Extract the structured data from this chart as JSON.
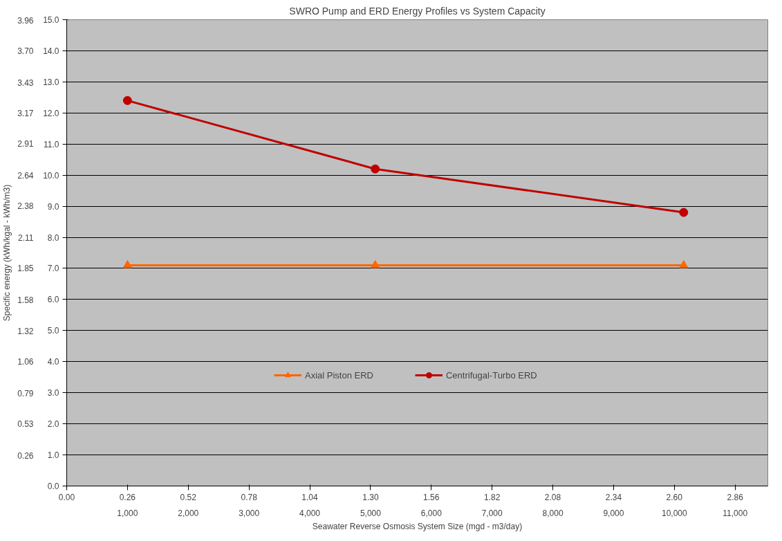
{
  "chart_data": {
    "type": "line",
    "title": "SWRO Pump and ERD Energy Profiles vs System Capacity",
    "xlabel": "Seawater Reverse Osmosis System Size (mgd - m3/day)",
    "y2label": "Specific energy (kWh/kgal - kWh/m3)",
    "x": [
      0.26,
      1.32,
      2.64
    ],
    "series": [
      {
        "name": "Axial Piston ERD",
        "color": "#ff6600",
        "marker": "triangle",
        "values": [
          7.1,
          7.1,
          7.1
        ]
      },
      {
        "name": "Centrifugal-Turbo ERD",
        "color": "#c00000",
        "marker": "circle",
        "values": [
          12.4,
          10.2,
          8.8
        ]
      }
    ],
    "xlim": [
      0,
      3.0
    ],
    "xticks": [
      {
        "value": 0,
        "label": "0.00"
      },
      0.26,
      0.52,
      0.78,
      1.04,
      {
        "value": 1.3,
        "label": "1.30"
      },
      1.56,
      1.82,
      2.08,
      2.34,
      {
        "value": 2.6,
        "label": "2.60"
      },
      2.86
    ],
    "x2lim": [
      0,
      11538
    ],
    "x2ticks": [
      {
        "value": 1000,
        "label": "1,000"
      },
      {
        "value": 2000,
        "label": "2,000"
      },
      {
        "value": 3000,
        "label": "3,000"
      },
      {
        "value": 4000,
        "label": "4,000"
      },
      {
        "value": 5000,
        "label": "5,000"
      },
      {
        "value": 6000,
        "label": "6,000"
      },
      {
        "value": 7000,
        "label": "7,000"
      },
      {
        "value": 8000,
        "label": "8,000"
      },
      {
        "value": 9000,
        "label": "9,000"
      },
      {
        "value": 10000,
        "label": "10,000"
      },
      {
        "value": 11000,
        "label": "11,000"
      }
    ],
    "ylim": [
      0,
      15
    ],
    "yticks": [
      {
        "value": 0,
        "label": "0.0"
      },
      {
        "value": 1,
        "label": "1.0"
      },
      {
        "value": 2,
        "label": "2.0"
      },
      {
        "value": 3,
        "label": "3.0"
      },
      {
        "value": 4,
        "label": "4.0"
      },
      {
        "value": 5,
        "label": "5.0"
      },
      {
        "value": 6,
        "label": "6.0"
      },
      {
        "value": 7,
        "label": "7.0"
      },
      {
        "value": 8,
        "label": "8.0"
      },
      {
        "value": 9,
        "label": "9.0"
      },
      {
        "value": 10,
        "label": "10.0"
      },
      {
        "value": 11,
        "label": "11.0"
      },
      {
        "value": 12,
        "label": "12.0"
      },
      {
        "value": 13,
        "label": "13.0"
      },
      {
        "value": 14,
        "label": "14.0"
      },
      {
        "value": 15,
        "label": "15.0"
      }
    ],
    "y2lim": [
      0,
      3.963
    ],
    "y2ticks": [
      0.26,
      0.53,
      0.79,
      1.06,
      1.32,
      1.58,
      1.85,
      2.11,
      2.38,
      2.64,
      2.91,
      3.17,
      3.43,
      {
        "value": 3.7,
        "label": "3.70"
      },
      3.96
    ],
    "grid": "y",
    "legend": "bottom",
    "line_style": "solid"
  }
}
